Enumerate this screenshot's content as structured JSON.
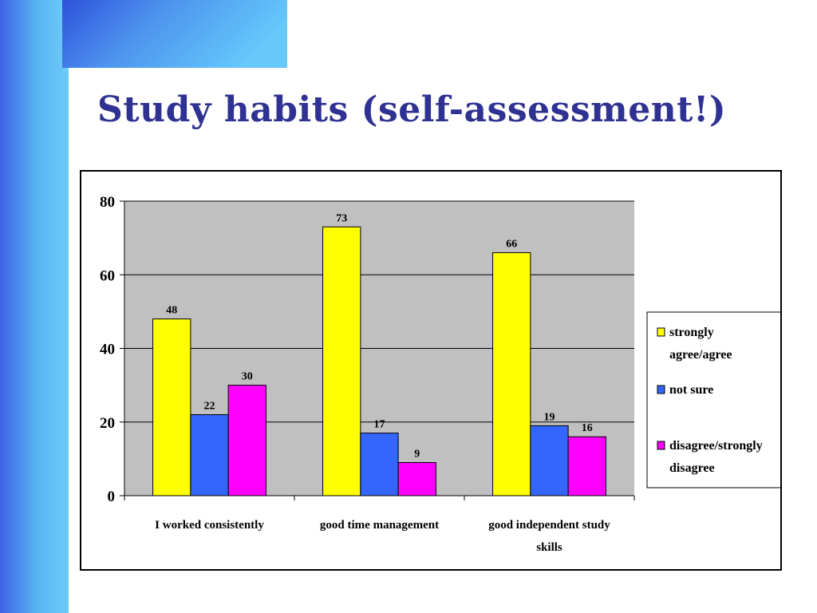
{
  "slide": {
    "title": "Study habits (self-assessment!)"
  },
  "chart_data": {
    "type": "bar",
    "categories": [
      [
        "I worked consistently"
      ],
      [
        "good time management"
      ],
      [
        "good independent study",
        "skills"
      ]
    ],
    "series": [
      {
        "name": [
          "strongly",
          "agree/agree"
        ],
        "values": [
          48,
          73,
          66
        ],
        "color": "#ffff00"
      },
      {
        "name": [
          "not sure"
        ],
        "values": [
          22,
          17,
          19
        ],
        "color": "#3366ff"
      },
      {
        "name": [
          "disagree/strongly",
          "disagree"
        ],
        "values": [
          30,
          9,
          16
        ],
        "color": "#ff00ff"
      }
    ],
    "ylim": [
      0,
      80
    ],
    "yticks": [
      0,
      20,
      40,
      60,
      80
    ],
    "grid": true,
    "plot_background": "#c0c0c0",
    "legend_position": "right"
  }
}
